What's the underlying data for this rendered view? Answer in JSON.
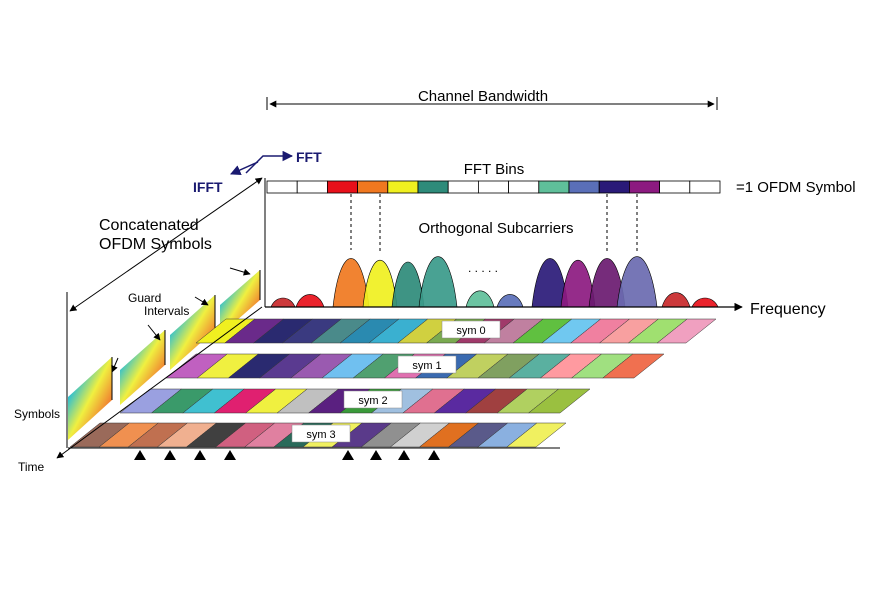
{
  "labels": {
    "channel_bandwidth": "Channel Bandwidth",
    "fft": "FFT",
    "ifft": "IFFT",
    "fft_bins": "FFT Bins",
    "ofdm_symbol": "=1 OFDM Symbol",
    "concatenated_1": "Concatenated",
    "concatenated_2": "OFDM Symbols",
    "orthogonal_subcarriers": "Orthogonal Subcarriers",
    "ellipsis": ". . . . .",
    "guard_1": "Guard",
    "guard_2": "Intervals",
    "frequency": "Frequency",
    "symbols": "Symbols",
    "time": "Time"
  },
  "symbol_labels": [
    "sym 0",
    "sym 1",
    "sym 2",
    "sym 3"
  ],
  "colors": {
    "line": "#000000",
    "navy": "#1a1a70",
    "bins": [
      "#ffffff",
      "#ffffff",
      "#e8101a",
      "#f07820",
      "#f0f020",
      "#2e8b7a",
      "#ffffff",
      "#ffffff",
      "#ffffff",
      "#5fbf9a",
      "#5a6fb8",
      "#2a1a78",
      "#8c1a80",
      "#ffffff",
      "#ffffff"
    ],
    "peaks": [
      "#c8282a",
      "#e8101a",
      "#f07820",
      "#f0f020",
      "#2e8b7a",
      "#3a9a8a",
      "#5fbf9a",
      "#5a6fb8",
      "#2a1a78",
      "#8c1a80",
      "#6a1a70",
      "#6a6ab0"
    ],
    "row0": [
      "#f0f020",
      "#6a2a8a",
      "#2a2a70",
      "#3a3a80",
      "#4a8a8a",
      "#2a8ab0",
      "#3ab0d0",
      "#d0d040",
      "#7aaa50",
      "#a03a6a",
      "#c080a0",
      "#60c040",
      "#70c8f0",
      "#f080a0",
      "#f8a0a0",
      "#a0e070",
      "#f0a0c0"
    ],
    "row1": [
      "#c060c0",
      "#f0f040",
      "#2a2a70",
      "#5a3a90",
      "#9a5ab0",
      "#70c0f0",
      "#50a070",
      "#e070b0",
      "#3a6ab0",
      "#c0d060",
      "#80a060",
      "#5ab0a0",
      "#ff9aa0",
      "#a0e080",
      "#f07050"
    ],
    "row2": [
      "#9aa0e0",
      "#3a9a6a",
      "#40c0d0",
      "#e02070",
      "#f0f040",
      "#c0c0c0",
      "#5a2080",
      "#3a9a3a",
      "#a0c0e0",
      "#e07090",
      "#5a2aa0",
      "#a04040",
      "#b0d060",
      "#9ac040"
    ],
    "row3": [
      "#9a6a5a",
      "#f09050",
      "#c07050",
      "#f0b090",
      "#404040",
      "#d06080",
      "#e080a0",
      "#2a6a5a",
      "#f0f060",
      "#5a3a8a",
      "#909090",
      "#d0d0d0",
      "#e07020",
      "#5a5a8a",
      "#8ab0e0",
      "#f0f060"
    ]
  },
  "icons": {
    "arrow_head": "triangle-arrowhead",
    "dimension_arrow": "double-headed-arrow",
    "up_marker": "filled-triangle-up"
  }
}
